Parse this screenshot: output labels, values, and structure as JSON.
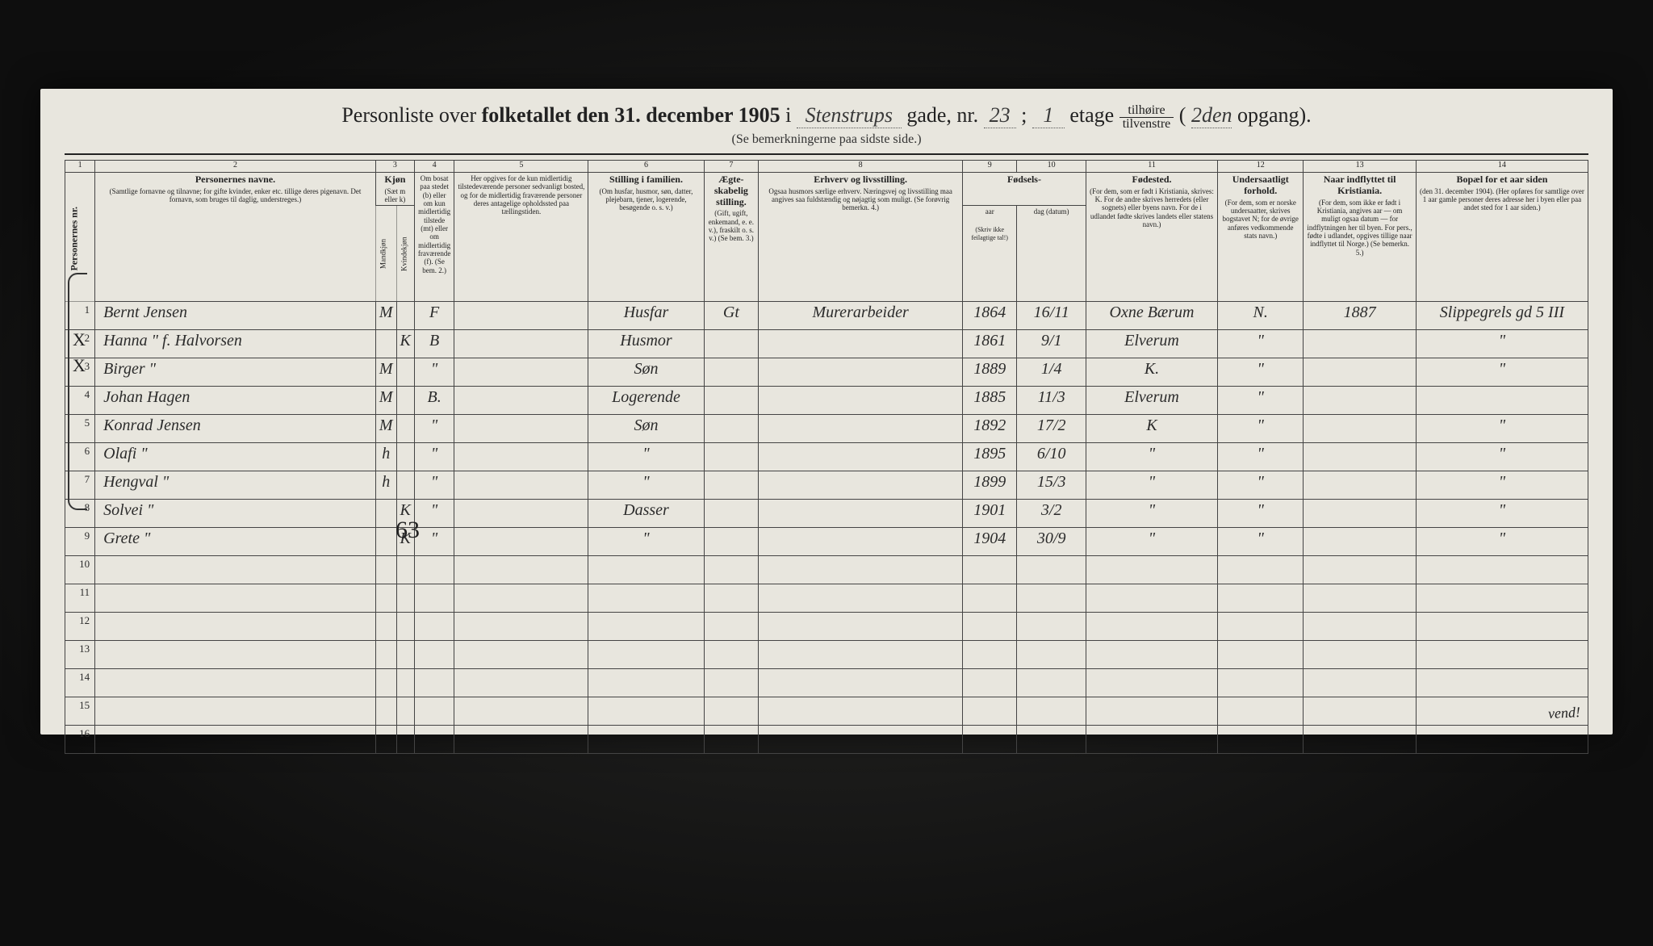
{
  "title": {
    "prefix": "Personliste over ",
    "bold1": "folketallet den 31. december 1905",
    "mid": " i ",
    "street": "Stenstrups",
    "gade": " gade, nr. ",
    "nr": "23",
    "sep": " ; ",
    "etage_nr": "1",
    "etage_word": " etage ",
    "frac_top": "tilhøire",
    "frac_bot": "tilvenstre",
    "paren_open": " ( ",
    "opgang_nr": "2den",
    "opgang_word": "opgang).",
    "subtitle": "(Se bemerkningerne paa sidste side.)"
  },
  "colnums": [
    "1",
    "2",
    "3",
    "4",
    "5",
    "6",
    "7",
    "8",
    "9",
    "10",
    "11",
    "12",
    "13",
    "14"
  ],
  "headers": {
    "c1": {
      "bold": "Personernes nr.",
      "small": ""
    },
    "c2": {
      "bold": "Personernes navne.",
      "small": "(Samtlige fornavne og tilnavne; for gifte kvinder, enker etc. tillige deres pigenavn. Det fornavn, som bruges til daglig, understreges.)"
    },
    "c3": {
      "bold": "Kjøn",
      "small": "(Sæt m eller k)"
    },
    "c3a": {
      "bold": "",
      "small": "Mandkjøn"
    },
    "c3b": {
      "bold": "",
      "small": "Kvindekjøn"
    },
    "c4": {
      "bold": "",
      "small": "Om bosat paa stedet (b) eller om kun midlertidig tilstede (mt) eller om midlertidig fraværende (f). (Se bem. 2.)"
    },
    "c5": {
      "bold": "",
      "small": "Her opgives for de kun midlertidig tilstedeværende personer sedvanligt bosted, og for de midlertidig fraværende personer deres antagelige opholdssted paa tællingstiden."
    },
    "c6": {
      "bold": "Stilling i familien.",
      "small": "(Om husfar, husmor, søn, datter, plejebarn, tjener, logerende, besøgende o. s. v.)"
    },
    "c7": {
      "bold": "Ægte-skabelig stilling.",
      "small": "(Gift, ugift, enkemand, e. e. v.), fraskilt o. s. v.) (Se bem. 3.)"
    },
    "c8": {
      "bold": "Erhverv og livsstilling.",
      "small": "Ogsaa husmors særlige erhverv. Næringsvej og livsstilling maa angives saa fuldstændig og nøjagtig som muligt. (Se forøvrig bemerkn. 4.)"
    },
    "c9_10": {
      "bold": "Fødsels-",
      "small": ""
    },
    "c9": {
      "bold": "",
      "small": "aar"
    },
    "c10": {
      "bold": "",
      "small": "dag (datum)"
    },
    "c9_10b": {
      "bold": "",
      "small": "(Skriv ikke feilagtige tal!)"
    },
    "c11": {
      "bold": "Fødested.",
      "small": "(For dem, som er født i Kristiania, skrives: K. For de andre skrives herredets (eller sognets) eller byens navn. For de i udlandet fødte skrives landets eller statens navn.)"
    },
    "c12": {
      "bold": "Undersaatligt forhold.",
      "small": "(For dem, som er norske undersaatter, skrives bogstavet N; for de øvrige anføres vedkommende stats navn.)"
    },
    "c13": {
      "bold": "Naar indflyttet til Kristiania.",
      "small": "(For dem, som ikke er født i Kristiania, angives aar — om muligt ogsaa datum — for indflytningen her til byen. For pers., fødte i udlandet, opgives tillige naar indflyttet til Norge.) (Se bemerkn. 5.)"
    },
    "c14": {
      "bold": "Bopæl for et aar siden",
      "small": "(den 31. december 1904). (Her opføres for samtlige over 1 aar gamle personer deres adresse her i byen eller paa andet sted for 1 aar siden.)"
    }
  },
  "rows": [
    {
      "n": "1",
      "name": "Bernt Jensen",
      "km": "M",
      "kk": "",
      "b": "F",
      "c5": "",
      "fam": "Husfar",
      "aegt": "Gt",
      "erhv": "Murerarbeider",
      "aar": "1864",
      "dag": "16/11",
      "fsted": "Oxne Bærum",
      "und": "N.",
      "indfl": "1887",
      "bopael": "Slippegrels gd 5 III"
    },
    {
      "n": "2",
      "name": "Hanna   \"   f. Halvorsen",
      "km": "",
      "kk": "K",
      "b": "B",
      "c5": "",
      "fam": "Husmor",
      "aegt": "",
      "erhv": "",
      "aar": "1861",
      "dag": "9/1",
      "fsted": "Elverum",
      "und": "\"",
      "indfl": "",
      "bopael": "\""
    },
    {
      "n": "3",
      "name": "Birger   \"",
      "km": "M",
      "kk": "",
      "b": "\"",
      "c5": "",
      "fam": "Søn",
      "aegt": "",
      "erhv": "",
      "aar": "1889",
      "dag": "1/4",
      "fsted": "K.",
      "und": "\"",
      "indfl": "",
      "bopael": "\""
    },
    {
      "n": "4",
      "name": "Johan   Hagen",
      "km": "M",
      "kk": "",
      "b": "B.",
      "c5": "",
      "fam": "Logerende",
      "aegt": "",
      "erhv": "",
      "aar": "1885",
      "dag": "11/3",
      "fsted": "Elverum",
      "und": "\"",
      "indfl": "",
      "bopael": ""
    },
    {
      "n": "5",
      "name": "Konrad  Jensen",
      "km": "M",
      "kk": "",
      "b": "\"",
      "c5": "",
      "fam": "Søn",
      "aegt": "",
      "erhv": "",
      "aar": "1892",
      "dag": "17/2",
      "fsted": "K",
      "und": "\"",
      "indfl": "",
      "bopael": "\""
    },
    {
      "n": "6",
      "name": "Olafi     \"",
      "km": "h",
      "kk": "",
      "b": "\"",
      "c5": "",
      "fam": "\"",
      "aegt": "",
      "erhv": "",
      "aar": "1895",
      "dag": "6/10",
      "fsted": "\"",
      "und": "\"",
      "indfl": "",
      "bopael": "\""
    },
    {
      "n": "7",
      "name": "Hengval   \"",
      "km": "h",
      "kk": "",
      "b": "\"",
      "c5": "",
      "fam": "\"",
      "aegt": "",
      "erhv": "",
      "aar": "1899",
      "dag": "15/3",
      "fsted": "\"",
      "und": "\"",
      "indfl": "",
      "bopael": "\""
    },
    {
      "n": "8",
      "name": "Solvei    \"",
      "km": "",
      "kk": "K",
      "b": "\"",
      "c5": "",
      "fam": "Dasser",
      "aegt": "",
      "erhv": "",
      "aar": "1901",
      "dag": "3/2",
      "fsted": "\"",
      "und": "\"",
      "indfl": "",
      "bopael": "\""
    },
    {
      "n": "9",
      "name": "Grete     \"",
      "km": "",
      "kk": "K",
      "b": "\"",
      "c5": "",
      "fam": "\"",
      "aegt": "",
      "erhv": "",
      "aar": "1904",
      "dag": "30/9",
      "fsted": "\"",
      "und": "\"",
      "indfl": "",
      "bopael": "\""
    },
    {
      "n": "10",
      "name": "",
      "km": "",
      "kk": "",
      "b": "",
      "c5": "",
      "fam": "",
      "aegt": "",
      "erhv": "",
      "aar": "",
      "dag": "",
      "fsted": "",
      "und": "",
      "indfl": "",
      "bopael": ""
    },
    {
      "n": "11",
      "name": "",
      "km": "",
      "kk": "",
      "b": "",
      "c5": "",
      "fam": "",
      "aegt": "",
      "erhv": "",
      "aar": "",
      "dag": "",
      "fsted": "",
      "und": "",
      "indfl": "",
      "bopael": ""
    },
    {
      "n": "12",
      "name": "",
      "km": "",
      "kk": "",
      "b": "",
      "c5": "",
      "fam": "",
      "aegt": "",
      "erhv": "",
      "aar": "",
      "dag": "",
      "fsted": "",
      "und": "",
      "indfl": "",
      "bopael": ""
    },
    {
      "n": "13",
      "name": "",
      "km": "",
      "kk": "",
      "b": "",
      "c5": "",
      "fam": "",
      "aegt": "",
      "erhv": "",
      "aar": "",
      "dag": "",
      "fsted": "",
      "und": "",
      "indfl": "",
      "bopael": ""
    },
    {
      "n": "14",
      "name": "",
      "km": "",
      "kk": "",
      "b": "",
      "c5": "",
      "fam": "",
      "aegt": "",
      "erhv": "",
      "aar": "",
      "dag": "",
      "fsted": "",
      "und": "",
      "indfl": "",
      "bopael": ""
    },
    {
      "n": "15",
      "name": "",
      "km": "",
      "kk": "",
      "b": "",
      "c5": "",
      "fam": "",
      "aegt": "",
      "erhv": "",
      "aar": "",
      "dag": "",
      "fsted": "",
      "und": "",
      "indfl": "",
      "bopael": ""
    },
    {
      "n": "16",
      "name": "",
      "km": "",
      "kk": "",
      "b": "",
      "c5": "",
      "fam": "",
      "aegt": "",
      "erhv": "",
      "aar": "",
      "dag": "",
      "fsted": "",
      "und": "",
      "indfl": "",
      "bopael": ""
    }
  ],
  "marks": {
    "x3": "X",
    "x4": "X",
    "count": "63",
    "vend": "vend!"
  },
  "colwidths": {
    "c1": 30,
    "c2": 370,
    "c3a": 22,
    "c3b": 22,
    "c4": 46,
    "c5": 180,
    "c6": 150,
    "c7": 70,
    "c8": 270,
    "c9": 70,
    "c10": 90,
    "c11": 170,
    "c12": 110,
    "c13": 150,
    "c14": 220
  },
  "colors": {
    "paper": "#e8e6de",
    "ink": "#222222",
    "hand": "#2b2b2b",
    "border": "#444444",
    "bg": "#1a1a1a"
  }
}
